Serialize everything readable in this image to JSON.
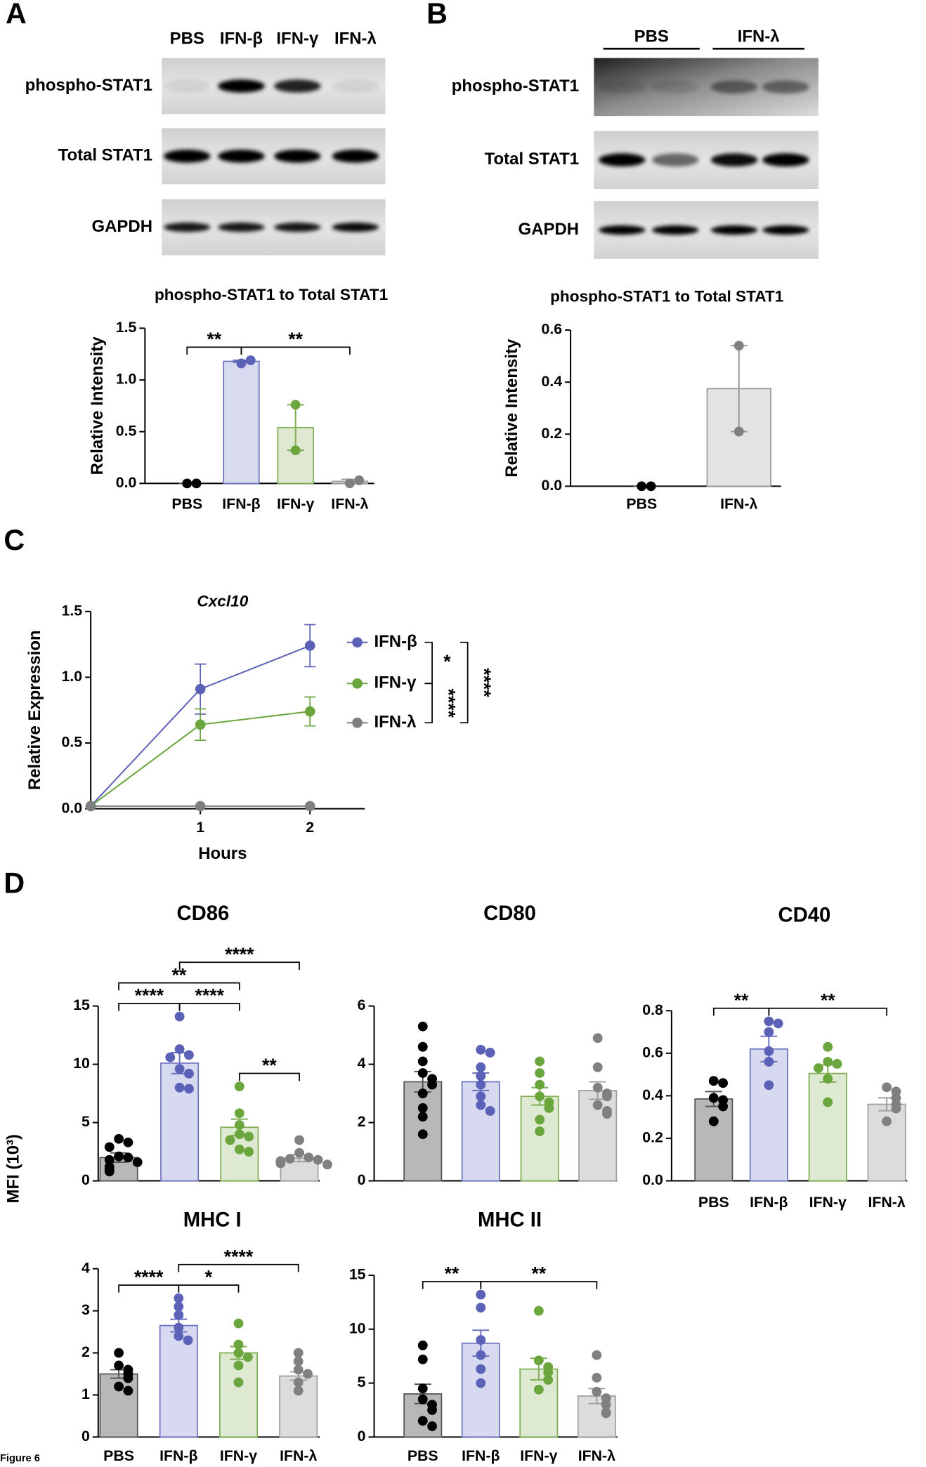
{
  "figure_label": "Figure 6",
  "panel_labels": [
    "A",
    "B",
    "C",
    "D"
  ],
  "shared_y_label": "MFI (10³)",
  "blots": [
    {
      "lanes": [
        "PBS",
        "IFN-β",
        "IFN-γ",
        "IFN-λ"
      ],
      "rows": [
        "phospho-STAT1",
        "Total STAT1",
        "GAPDH"
      ]
    },
    {
      "groups": [
        "PBS",
        "IFN-λ"
      ],
      "rows": [
        "phospho-STAT1",
        "Total STAT1",
        "GAPDH"
      ]
    }
  ],
  "chart_data": [
    {
      "type": "bar",
      "title": "phospho-STAT1 to Total STAT1",
      "y_label": "Relative Intensity",
      "categories": [
        "PBS",
        "IFN-β",
        "IFN-γ",
        "IFN-λ"
      ],
      "values": [
        0,
        1.18,
        0.54,
        0.02
      ],
      "errors": [
        0,
        0.01,
        0.22,
        0.02
      ],
      "points": [
        [
          0,
          0
        ],
        [
          1.16,
          1.19
        ],
        [
          0.32,
          0.76
        ],
        [
          0,
          0.03
        ]
      ],
      "bar_colors": [
        "#ffffff",
        "#d8dbef",
        "#dfe9d2",
        "#e3e3e3"
      ],
      "edge_colors": [
        "#555555",
        "#6c74bd",
        "#7fae55",
        "#9a9a9a"
      ],
      "point_colors": [
        "#000000",
        "#5a61b6",
        "#6aa63d",
        "#7f7f7f"
      ],
      "ylim": [
        0,
        1.5
      ],
      "yticks": [
        {
          "value": 0,
          "label": "0.0"
        },
        0.5,
        {
          "value": 1,
          "label": "1.0"
        },
        1.5
      ],
      "annotations": [
        {
          "between": [
            0,
            1
          ],
          "label": "**"
        },
        {
          "between": [
            1,
            3
          ],
          "label": "**"
        }
      ]
    },
    {
      "type": "bar",
      "title": "phospho-STAT1 to Total STAT1",
      "y_label": "Relative Intensity",
      "categories": [
        "PBS",
        "IFN-λ"
      ],
      "values": [
        0,
        0.375
      ],
      "errors": [
        0,
        0.165
      ],
      "points": [
        [
          0,
          0
        ],
        [
          0.54,
          0.21
        ]
      ],
      "bar_colors": [
        "#ffffff",
        "#e3e3e3"
      ],
      "edge_colors": [
        "#555555",
        "#9a9a9a"
      ],
      "point_colors": [
        "#000000",
        "#7f7f7f"
      ],
      "ylim": [
        0,
        0.6
      ],
      "yticks": [
        {
          "value": 0,
          "label": "0.0"
        },
        0.2,
        0.4,
        0.6
      ],
      "annotations": []
    },
    {
      "type": "line",
      "title": "Cxcl10",
      "x_label": "Hours",
      "y_label": "Relative Expression",
      "x": [
        0,
        1,
        2
      ],
      "xlim": [
        0,
        2.5
      ],
      "xticks": [
        1,
        2
      ],
      "ylim": [
        0,
        1.5
      ],
      "yticks": [
        {
          "value": 0,
          "label": "0.0"
        },
        0.5,
        {
          "value": 1,
          "label": "1.0"
        },
        1.5
      ],
      "series": [
        {
          "name": "IFN-β",
          "color": "#5a61b6",
          "values": [
            0.02,
            0.91,
            1.24
          ],
          "errors": [
            0,
            0.19,
            0.16
          ]
        },
        {
          "name": "IFN-γ",
          "color": "#6aa63d",
          "values": [
            0.02,
            0.64,
            0.74
          ],
          "errors": [
            0,
            0.12,
            0.11
          ]
        },
        {
          "name": "IFN-λ",
          "color": "#7f7f7f",
          "values": [
            0.02,
            0.02,
            0.02
          ],
          "errors": [
            0,
            0,
            0
          ]
        }
      ],
      "annotations": [
        {
          "between": [
            0,
            1
          ],
          "label": "*"
        },
        {
          "between": [
            1,
            2
          ],
          "label": "****"
        },
        {
          "between": [
            0,
            2
          ],
          "label": "****"
        }
      ]
    },
    {
      "type": "bar",
      "title": "CD86",
      "categories": [
        null,
        null,
        null,
        null
      ],
      "values": [
        2.0,
        10.1,
        4.6,
        1.95
      ],
      "errors": [
        0.4,
        0.9,
        0.7,
        0.3
      ],
      "points": [
        [
          3.6,
          3.3,
          2.9,
          2.1,
          2.0,
          1.8,
          1.6,
          1.2,
          1.0,
          0.8
        ],
        [
          14.1,
          11.3,
          10.8,
          10.6,
          9.6,
          8.0,
          7.9,
          9.2
        ],
        [
          8.1,
          5.8,
          4.8,
          4.0,
          3.8,
          3.5,
          2.7,
          2.5
        ],
        [
          3.5,
          2.4,
          2.0,
          1.9,
          1.8,
          1.7,
          1.5,
          1.4
        ]
      ],
      "bar_colors": [
        "#b8b8b8",
        "#d6d9ef",
        "#dde9d0",
        "#dcdcdc"
      ],
      "edge_colors": [
        "#555555",
        "#6b73be",
        "#7fae55",
        "#a0a0a0"
      ],
      "point_colors": [
        "#000000",
        "#5a61b6",
        "#6aa63d",
        "#808080"
      ],
      "ylim": [
        0,
        15
      ],
      "yticks": [
        0,
        5,
        10,
        15
      ],
      "annotations": [
        {
          "between": [
            0,
            1
          ],
          "label": "****"
        },
        {
          "between": [
            1,
            2
          ],
          "label": "****"
        },
        {
          "between": [
            0,
            2
          ],
          "label": "**"
        },
        {
          "between": [
            1,
            3
          ],
          "label": "****"
        },
        {
          "between": [
            2,
            3
          ],
          "label": "**"
        }
      ]
    },
    {
      "type": "bar",
      "title": "CD80",
      "categories": [
        null,
        null,
        null,
        null
      ],
      "values": [
        3.4,
        3.4,
        2.9,
        3.1
      ],
      "errors": [
        0.35,
        0.3,
        0.3,
        0.3
      ],
      "points": [
        [
          5.3,
          4.6,
          4.1,
          3.7,
          3.5,
          3.3,
          3.0,
          2.5,
          2.2,
          1.6
        ],
        [
          4.5,
          4.4,
          3.9,
          3.6,
          3.3,
          2.9,
          2.6,
          2.4
        ],
        [
          4.1,
          3.7,
          3.3,
          2.9,
          2.7,
          2.5,
          2.1,
          1.7
        ],
        [
          4.9,
          3.9,
          3.2,
          3.0,
          2.9,
          2.6,
          2.4,
          2.3
        ]
      ],
      "bar_colors": [
        "#b8b8b8",
        "#d6d9ef",
        "#dde9d0",
        "#dcdcdc"
      ],
      "edge_colors": [
        "#555555",
        "#6b73be",
        "#7fae55",
        "#a0a0a0"
      ],
      "point_colors": [
        "#000000",
        "#5a61b6",
        "#6aa63d",
        "#808080"
      ],
      "ylim": [
        0,
        6
      ],
      "yticks": [
        0,
        2,
        4,
        6
      ],
      "annotations": []
    },
    {
      "type": "bar",
      "title": "CD40",
      "categories": [
        "PBS",
        "IFN-β",
        "IFN-γ",
        "IFN-λ"
      ],
      "values": [
        0.385,
        0.62,
        0.505,
        0.36
      ],
      "errors": [
        0.035,
        0.06,
        0.04,
        0.03
      ],
      "points": [
        [
          0.47,
          0.46,
          0.39,
          0.38,
          0.35,
          0.28
        ],
        [
          0.75,
          0.74,
          0.7,
          0.61,
          0.56,
          0.45
        ],
        [
          0.63,
          0.56,
          0.55,
          0.53,
          0.48,
          0.37
        ],
        [
          0.44,
          0.42,
          0.39,
          0.36,
          0.34,
          0.28
        ]
      ],
      "bar_colors": [
        "#b8b8b8",
        "#d6d9ef",
        "#dde9d0",
        "#dcdcdc"
      ],
      "edge_colors": [
        "#555555",
        "#6b73be",
        "#7fae55",
        "#a0a0a0"
      ],
      "point_colors": [
        "#000000",
        "#5a61b6",
        "#6aa63d",
        "#808080"
      ],
      "ylim": [
        0,
        0.8
      ],
      "yticks": [
        {
          "value": 0,
          "label": "0.0"
        },
        0.2,
        0.4,
        0.6,
        0.8
      ],
      "annotations": [
        {
          "between": [
            0,
            1
          ],
          "label": "**"
        },
        {
          "between": [
            1,
            3
          ],
          "label": "**"
        }
      ]
    },
    {
      "type": "bar",
      "title": "MHC I",
      "categories": [
        "PBS",
        "IFN-β",
        "IFN-γ",
        "IFN-λ"
      ],
      "values": [
        1.5,
        2.65,
        2.0,
        1.45
      ],
      "errors": [
        0.1,
        0.15,
        0.15,
        0.1
      ],
      "points": [
        [
          2.0,
          1.7,
          1.6,
          1.5,
          1.4,
          1.2,
          1.1
        ],
        [
          3.3,
          3.1,
          2.9,
          2.6,
          2.4,
          2.3
        ],
        [
          2.7,
          2.2,
          2.0,
          1.9,
          1.7,
          1.3
        ],
        [
          2.0,
          1.8,
          1.6,
          1.5,
          1.3,
          1.1
        ]
      ],
      "bar_colors": [
        "#b8b8b8",
        "#d6d9ef",
        "#dde9d0",
        "#dcdcdc"
      ],
      "edge_colors": [
        "#555555",
        "#6b73be",
        "#7fae55",
        "#a0a0a0"
      ],
      "point_colors": [
        "#000000",
        "#5a61b6",
        "#6aa63d",
        "#808080"
      ],
      "ylim": [
        0,
        4
      ],
      "yticks": [
        0,
        1,
        2,
        3,
        4
      ],
      "annotations": [
        {
          "between": [
            0,
            1
          ],
          "label": "****"
        },
        {
          "between": [
            1,
            2
          ],
          "label": "*"
        },
        {
          "between": [
            1,
            3
          ],
          "label": "****"
        }
      ]
    },
    {
      "type": "bar",
      "title": "MHC II",
      "categories": [
        "PBS",
        "IFN-β",
        "IFN-γ",
        "IFN-λ"
      ],
      "values": [
        4.0,
        8.7,
        6.3,
        3.8
      ],
      "errors": [
        0.9,
        1.2,
        1.0,
        0.7
      ],
      "points": [
        [
          8.5,
          7.2,
          4.5,
          3.5,
          3.0,
          2.5,
          1.5,
          1.0
        ],
        [
          13.2,
          12.0,
          9.0,
          7.6,
          6.3,
          5.0
        ],
        [
          11.7,
          7.1,
          6.5,
          6.0,
          5.3,
          4.4
        ],
        [
          7.6,
          5.5,
          4.2,
          3.6,
          3.0,
          2.3,
          2.2
        ]
      ],
      "bar_colors": [
        "#b8b8b8",
        "#d6d9ef",
        "#dde9d0",
        "#dcdcdc"
      ],
      "edge_colors": [
        "#555555",
        "#6b73be",
        "#7fae55",
        "#a0a0a0"
      ],
      "point_colors": [
        "#000000",
        "#5a61b6",
        "#6aa63d",
        "#808080"
      ],
      "ylim": [
        0,
        15
      ],
      "yticks": [
        0,
        5,
        10,
        15
      ],
      "annotations": [
        {
          "between": [
            0,
            1
          ],
          "label": "**"
        },
        {
          "between": [
            1,
            3
          ],
          "label": "**"
        }
      ]
    }
  ]
}
